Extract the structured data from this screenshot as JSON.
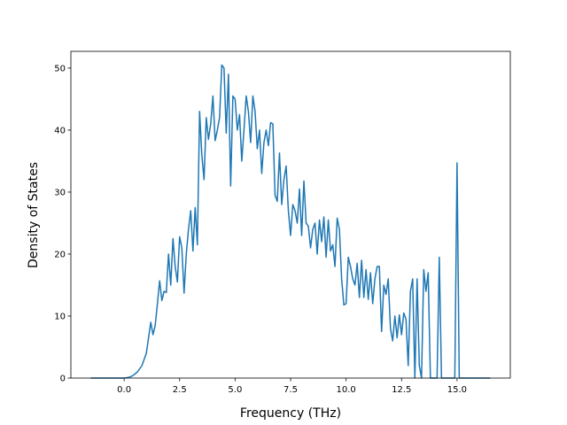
{
  "chart_data": {
    "type": "line",
    "xlabel": "Frequency (THz)",
    "ylabel": "Density of States",
    "x": [
      -1.5,
      -1.0,
      -0.5,
      0,
      0.2,
      0.4,
      0.6,
      0.8,
      1.0,
      1.1,
      1.2,
      1.3,
      1.4,
      1.5,
      1.6,
      1.7,
      1.8,
      1.9,
      2.0,
      2.1,
      2.2,
      2.3,
      2.4,
      2.5,
      2.6,
      2.7,
      2.8,
      2.9,
      3.0,
      3.1,
      3.2,
      3.3,
      3.4,
      3.5,
      3.6,
      3.7,
      3.8,
      3.9,
      4.0,
      4.1,
      4.2,
      4.3,
      4.4,
      4.5,
      4.6,
      4.7,
      4.8,
      4.9,
      5.0,
      5.1,
      5.2,
      5.3,
      5.4,
      5.5,
      5.6,
      5.7,
      5.8,
      5.9,
      6.0,
      6.1,
      6.2,
      6.3,
      6.4,
      6.5,
      6.6,
      6.7,
      6.8,
      6.9,
      7.0,
      7.1,
      7.2,
      7.3,
      7.4,
      7.5,
      7.6,
      7.7,
      7.8,
      7.9,
      8.0,
      8.1,
      8.2,
      8.3,
      8.4,
      8.5,
      8.6,
      8.7,
      8.8,
      8.9,
      9.0,
      9.1,
      9.2,
      9.3,
      9.4,
      9.5,
      9.6,
      9.7,
      9.8,
      9.9,
      10.0,
      10.1,
      10.2,
      10.3,
      10.4,
      10.5,
      10.6,
      10.7,
      10.8,
      10.9,
      11.0,
      11.1,
      11.2,
      11.3,
      11.4,
      11.5,
      11.6,
      11.7,
      11.8,
      11.9,
      12.0,
      12.1,
      12.2,
      12.3,
      12.4,
      12.5,
      12.6,
      12.7,
      12.8,
      12.9,
      13.0,
      13.1,
      13.2,
      13.3,
      13.4,
      13.5,
      13.6,
      13.7,
      13.8,
      14.1,
      14.2,
      14.3,
      14.9,
      15.0,
      15.1,
      16.5
    ],
    "values": [
      0,
      0,
      0,
      0,
      0.1,
      0.4,
      1,
      2,
      4,
      6.5,
      9,
      7,
      8.5,
      12,
      15.7,
      12.5,
      14,
      13.8,
      20,
      15,
      22.5,
      18,
      15.5,
      22.8,
      21,
      13.7,
      20,
      24,
      27,
      20.5,
      27.5,
      21.5,
      43,
      36,
      32,
      42,
      38.5,
      41,
      45.5,
      38.3,
      40,
      42,
      50.5,
      50,
      39.5,
      49,
      31,
      45.5,
      45,
      40,
      42.5,
      35,
      40,
      45.5,
      43,
      38,
      45.5,
      43,
      37,
      40,
      33,
      38,
      40,
      37.5,
      41.2,
      41,
      29.5,
      28.5,
      36.3,
      28,
      32,
      34.2,
      27,
      23,
      28,
      27,
      25,
      30.5,
      23,
      31.8,
      25,
      24.5,
      21,
      24,
      25,
      20,
      25.5,
      22,
      26,
      19.5,
      25.5,
      20.5,
      21.5,
      18,
      25.8,
      24,
      16,
      11.8,
      12,
      19.5,
      18,
      16,
      15,
      18.5,
      13,
      19,
      13,
      17.5,
      12.7,
      17,
      12,
      16,
      18,
      18,
      7.5,
      15,
      13.5,
      16,
      8,
      6,
      10,
      6.5,
      10.2,
      7,
      10.5,
      9.5,
      2,
      14,
      16,
      0,
      16,
      2,
      0,
      17.5,
      14,
      17,
      0,
      0,
      19.5,
      0,
      0,
      34.7,
      0,
      0
    ],
    "color": "#1f77b4",
    "xlim": [
      -2.4,
      17.4
    ],
    "xticks": [
      {
        "value": 0,
        "label": "0.0"
      },
      {
        "value": 2.5,
        "label": "2.5"
      },
      {
        "value": 5,
        "label": "5.0"
      },
      {
        "value": 7.5,
        "label": "7.5"
      },
      {
        "value": 10,
        "label": "10.0"
      },
      {
        "value": 12.5,
        "label": "12.5"
      },
      {
        "value": 15,
        "label": "15.0"
      }
    ],
    "ylim": [
      0,
      52.7
    ],
    "yticks": [
      0,
      10,
      20,
      30,
      40,
      50
    ]
  }
}
